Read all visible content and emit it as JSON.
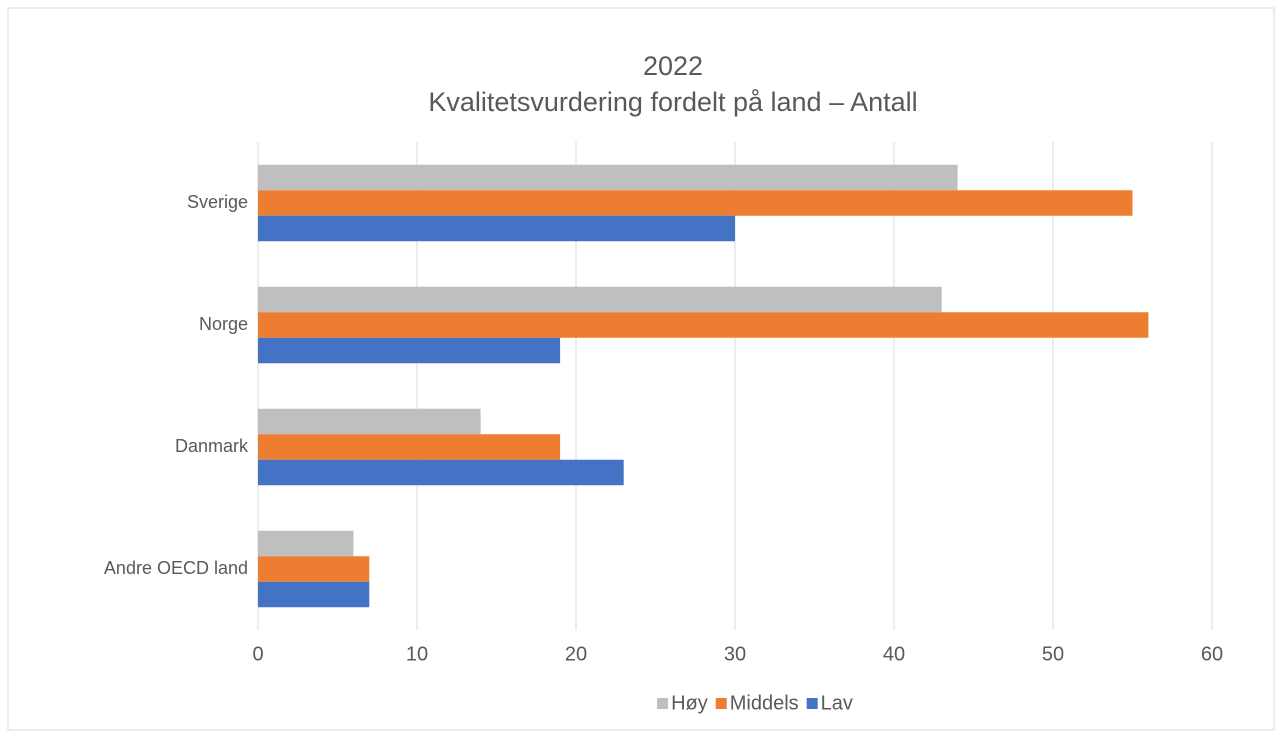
{
  "chart_data": {
    "type": "bar",
    "orientation": "horizontal",
    "title": "2022",
    "subtitle": "Kvalitetsvurdering fordelt på land – Antall",
    "categories": [
      "Sverige",
      "Norge",
      "Danmark",
      "Andre OECD land"
    ],
    "series": [
      {
        "name": "Høy",
        "color": "#bfbfbf",
        "values": [
          44,
          43,
          14,
          6
        ]
      },
      {
        "name": "Middels",
        "color": "#ed7d31",
        "values": [
          55,
          56,
          19,
          7
        ]
      },
      {
        "name": "Lav",
        "color": "#4472c4",
        "values": [
          30,
          19,
          23,
          7
        ]
      }
    ],
    "xlim": [
      0,
      60
    ],
    "xticks": [
      0,
      10,
      20,
      30,
      40,
      50,
      60
    ],
    "grid": true,
    "legend": "bottom"
  }
}
